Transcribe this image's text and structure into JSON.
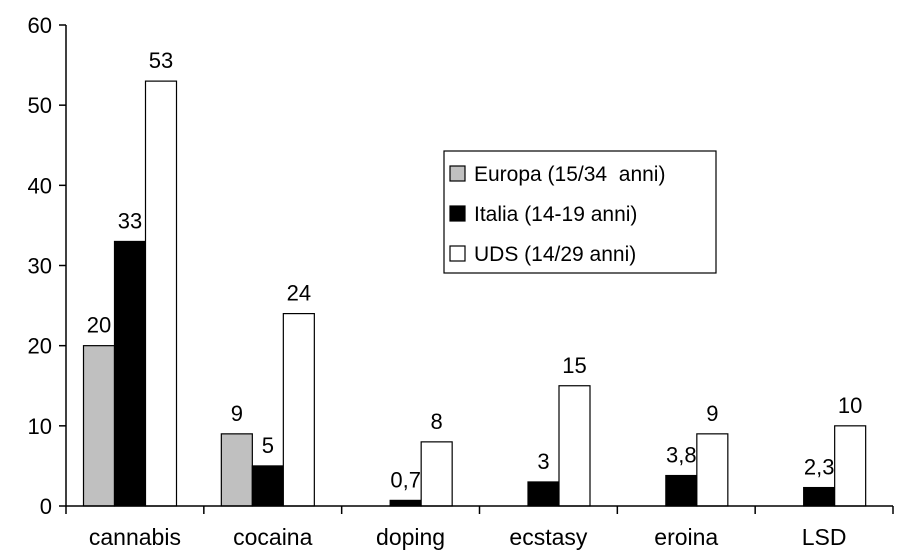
{
  "chart_data": {
    "type": "bar",
    "categories": [
      "cannabis",
      "cocaina",
      "doping",
      "ecstasy",
      "eroina",
      "LSD"
    ],
    "series": [
      {
        "name": "Europa (15/34  anni)",
        "color": "#c0c0c0",
        "values": [
          20,
          9,
          null,
          null,
          null,
          null
        ],
        "labels": [
          "20",
          "9",
          "",
          "",
          "",
          ""
        ]
      },
      {
        "name": "Italia (14-19 anni)",
        "color": "#000000",
        "values": [
          33,
          5,
          0.7,
          3,
          3.8,
          2.3
        ],
        "labels": [
          "33",
          "5",
          "0,7",
          "3",
          "3,8",
          "2,3"
        ]
      },
      {
        "name": "UDS (14/29 anni)",
        "color": "#ffffff",
        "values": [
          53,
          24,
          8,
          15,
          9,
          10
        ],
        "labels": [
          "53",
          "24",
          "8",
          "15",
          "9",
          "10"
        ]
      }
    ],
    "yticks": [
      "0",
      "10",
      "20",
      "30",
      "40",
      "50",
      "60"
    ],
    "ylim": [
      0,
      60
    ],
    "title": "",
    "xlabel": "",
    "ylabel": "",
    "grid": false,
    "legend_position": "center-right"
  }
}
